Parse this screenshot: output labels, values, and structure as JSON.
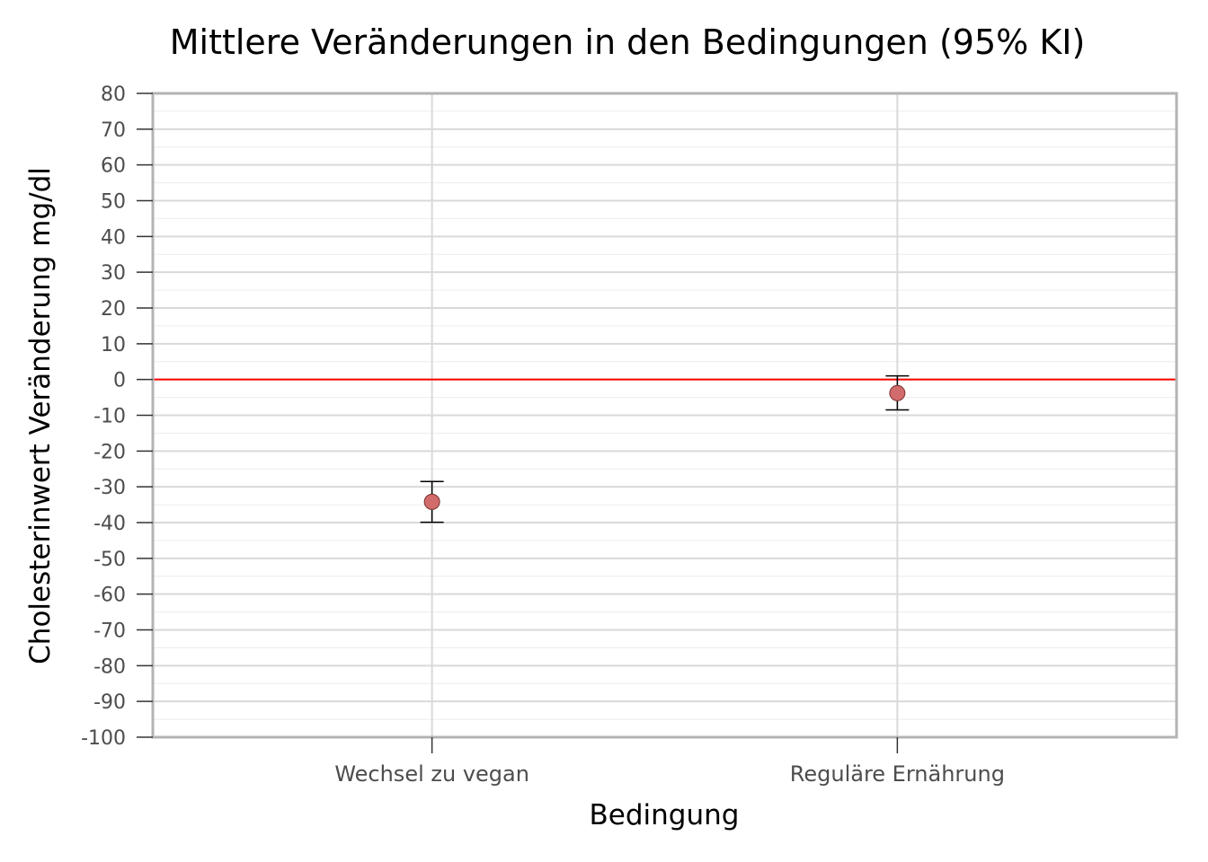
{
  "chart_data": {
    "type": "scatter",
    "title": "Mittlere Veränderungen in den Bedingungen (95% KI)",
    "xlabel": "Bedingung",
    "ylabel": "Cholesterinwert Veränderung mg/dl",
    "categories": [
      "Wechsel zu vegan",
      "Reguläre Ernährung"
    ],
    "series": [
      {
        "values": [
          -34.2,
          -3.8
        ],
        "ci_lower": [
          -39.9,
          -8.5
        ],
        "ci_upper": [
          -28.5,
          1.0
        ]
      }
    ],
    "ylim": [
      -100,
      80
    ],
    "yticks": [
      80,
      70,
      60,
      50,
      40,
      30,
      20,
      10,
      0,
      -10,
      -20,
      -30,
      -40,
      -50,
      -60,
      -70,
      -80,
      -90,
      -100
    ],
    "ytick_labels": [
      "80",
      "70",
      "60",
      "50",
      "40",
      "30",
      "20",
      "10",
      "0",
      "-10",
      "-20",
      "-30",
      "-40",
      "-50",
      "-60",
      "-70",
      "-80",
      "-90",
      "-100"
    ],
    "reference_line": 0,
    "grid": true,
    "colors": {
      "point_fill": "#d26b6b",
      "point_stroke": "#7a2f2f",
      "reference_line": "#ff0000",
      "errorbar": "#000000",
      "grid_major": "#d9d9d9",
      "grid_minor": "#ececec",
      "panel_border": "#b3b3b3"
    }
  }
}
